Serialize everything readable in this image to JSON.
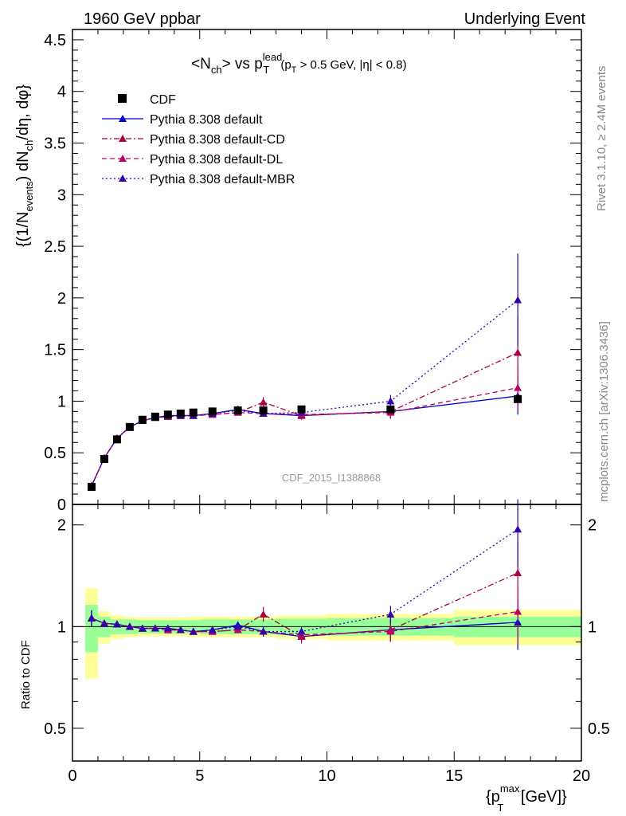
{
  "header": {
    "left": "1960 GeV ppbar",
    "right": "Underlying Event"
  },
  "side_labels": {
    "rivet": "Rivet 3.1.10, ≥ 2.4M events",
    "mcplots": "mcplots.cern.ch [arXiv:1306.3436]"
  },
  "watermark": "CDF_2015_I1388868",
  "title": {
    "main": "<N",
    "main_sub": "ch",
    "vs": "> vs p",
    "vs_sup": "lead",
    "vs_sub": "T",
    "cut_a": "(p",
    "cut_a_sub": "T",
    "cut_b": " > 0.5 GeV, |η| < 0.8)"
  },
  "ylabel_top": {
    "a": "{(1/N",
    "a_sub": "events",
    "b": ") dN",
    "b_sub": "ch",
    "c": "/dη, dφ}"
  },
  "ylabel_bottom": "Ratio to CDF",
  "xlabel": {
    "a": "{p",
    "a_sup": "max",
    "a_sub": "T",
    "b": " [GeV]}"
  },
  "colors": {
    "data": "#000000",
    "default": "#0000cc",
    "cd": "#aa0044",
    "dl": "#bb0066",
    "mbr": "#3300aa",
    "band_outer": "#ffff99",
    "band_inner": "#99ff99"
  },
  "chart_data": {
    "type": "line",
    "xlim": [
      0,
      20
    ],
    "main_ylim": [
      0,
      4.6
    ],
    "ratio_ylim": [
      0.4,
      2.3
    ],
    "ratio_scale": "log",
    "x_ticks": [
      "0",
      "5",
      "10",
      "15",
      "20"
    ],
    "main_y_ticks": [
      "0",
      "0.5",
      "1",
      "1.5",
      "2",
      "2.5",
      "3",
      "3.5",
      "4",
      "4.5"
    ],
    "ratio_y_ticks": [
      "0.5",
      "1",
      "2"
    ],
    "legend_position": "top-left",
    "data": {
      "name": "CDF",
      "x": [
        0.75,
        1.25,
        1.75,
        2.25,
        2.75,
        3.25,
        3.75,
        4.25,
        4.75,
        5.5,
        6.5,
        7.5,
        9.0,
        12.5,
        17.5
      ],
      "y": [
        0.17,
        0.44,
        0.63,
        0.75,
        0.82,
        0.85,
        0.87,
        0.88,
        0.89,
        0.9,
        0.91,
        0.91,
        0.92,
        0.92,
        1.02
      ],
      "band_x": [
        [
          0.5,
          1.0
        ],
        [
          1.0,
          1.5
        ],
        [
          1.5,
          2.0
        ],
        [
          2.0,
          2.5
        ],
        [
          2.5,
          3.0
        ],
        [
          3.0,
          3.5
        ],
        [
          3.5,
          4.0
        ],
        [
          4.0,
          4.5
        ],
        [
          4.5,
          5.0
        ],
        [
          5.0,
          6.0
        ],
        [
          6.0,
          7.0
        ],
        [
          7.0,
          8.0
        ],
        [
          8.0,
          10.0
        ],
        [
          10.0,
          15.0
        ],
        [
          15.0,
          20.0
        ]
      ],
      "band_inner": [
        0.16,
        0.07,
        0.05,
        0.05,
        0.045,
        0.045,
        0.045,
        0.045,
        0.045,
        0.05,
        0.05,
        0.05,
        0.055,
        0.06,
        0.07
      ],
      "band_outer": [
        0.3,
        0.11,
        0.08,
        0.07,
        0.065,
        0.065,
        0.065,
        0.065,
        0.07,
        0.07,
        0.07,
        0.07,
        0.08,
        0.09,
        0.12
      ]
    },
    "series": [
      {
        "name": "Pythia 8.308 default",
        "key": "default",
        "style": "solid",
        "x": [
          0.75,
          1.25,
          1.75,
          2.25,
          2.75,
          3.25,
          3.75,
          4.25,
          4.75,
          5.5,
          6.5,
          7.5,
          9.0,
          12.5,
          17.5
        ],
        "y": [
          0.18,
          0.45,
          0.64,
          0.75,
          0.81,
          0.84,
          0.86,
          0.86,
          0.86,
          0.88,
          0.92,
          0.88,
          0.86,
          0.9,
          1.05
        ],
        "err": [
          0.01,
          0.01,
          0.01,
          0.01,
          0.01,
          0.01,
          0.01,
          0.01,
          0.01,
          0.01,
          0.01,
          0.02,
          0.03,
          0.07,
          0.18
        ]
      },
      {
        "name": "Pythia 8.308 default-CD",
        "key": "cd",
        "style": "dashdot",
        "x": [
          0.75,
          1.25,
          1.75,
          2.25,
          2.75,
          3.25,
          3.75,
          4.25,
          4.75,
          5.5,
          6.5,
          7.5,
          9.0,
          12.5,
          17.5
        ],
        "y": [
          0.18,
          0.45,
          0.64,
          0.75,
          0.81,
          0.84,
          0.85,
          0.86,
          0.86,
          0.87,
          0.89,
          0.99,
          0.86,
          0.9,
          1.47
        ],
        "err": [
          0.01,
          0.01,
          0.01,
          0.01,
          0.01,
          0.01,
          0.01,
          0.01,
          0.01,
          0.01,
          0.02,
          0.05,
          0.04,
          0.07,
          0.35
        ]
      },
      {
        "name": "Pythia 8.308 default-DL",
        "key": "dl",
        "style": "dashed",
        "x": [
          0.75,
          1.25,
          1.75,
          2.25,
          2.75,
          3.25,
          3.75,
          4.25,
          4.75,
          5.5,
          6.5,
          7.5,
          9.0,
          12.5,
          17.5
        ],
        "y": [
          0.18,
          0.45,
          0.64,
          0.75,
          0.81,
          0.84,
          0.85,
          0.86,
          0.86,
          0.87,
          0.89,
          0.88,
          0.87,
          0.89,
          1.13
        ],
        "err": [
          0.01,
          0.01,
          0.01,
          0.01,
          0.01,
          0.01,
          0.01,
          0.01,
          0.01,
          0.01,
          0.02,
          0.03,
          0.03,
          0.06,
          0.22
        ]
      },
      {
        "name": "Pythia 8.308 default-MBR",
        "key": "mbr",
        "style": "dotted",
        "x": [
          0.75,
          1.25,
          1.75,
          2.25,
          2.75,
          3.25,
          3.75,
          4.25,
          4.75,
          5.5,
          6.5,
          7.5,
          9.0,
          12.5,
          17.5
        ],
        "y": [
          0.18,
          0.45,
          0.64,
          0.75,
          0.81,
          0.84,
          0.86,
          0.86,
          0.86,
          0.88,
          0.91,
          0.88,
          0.89,
          1.0,
          1.98
        ],
        "err": [
          0.01,
          0.01,
          0.01,
          0.01,
          0.01,
          0.01,
          0.01,
          0.01,
          0.01,
          0.01,
          0.02,
          0.03,
          0.03,
          0.06,
          0.45
        ]
      }
    ]
  }
}
